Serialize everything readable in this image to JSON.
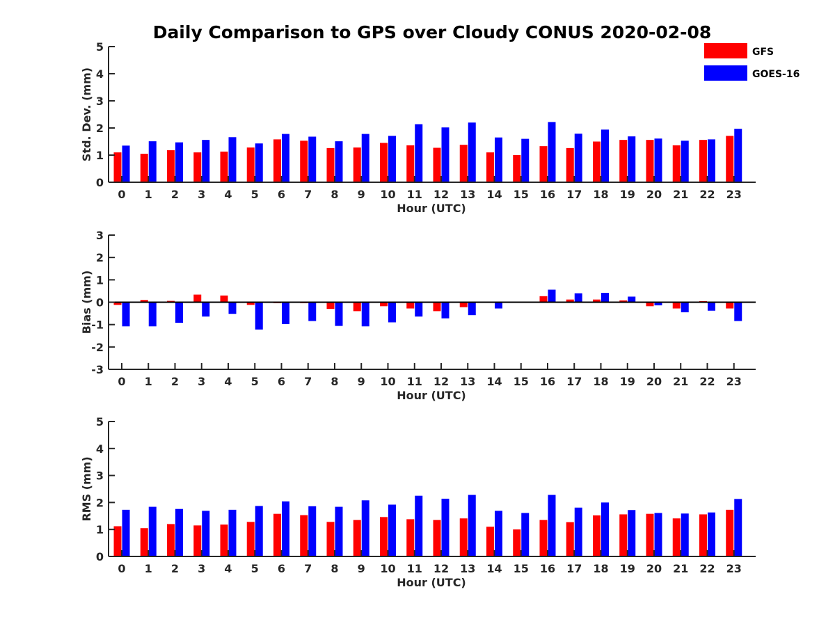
{
  "title": "Daily Comparison to GPS over Cloudy CONUS 2020-02-08",
  "legend": [
    {
      "name": "GFS",
      "color": "#ff0000"
    },
    {
      "name": "GOES-16",
      "color": "#0000ff"
    }
  ],
  "legend_position": "top-right",
  "chart_data": [
    {
      "type": "bar",
      "title": "Daily Comparison to GPS over Cloudy CONUS 2020-02-08",
      "xlabel": "Hour (UTC)",
      "ylabel": "Std. Dev. (mm)",
      "ylim": [
        0,
        5
      ],
      "yticks": [
        0,
        1,
        2,
        3,
        4,
        5
      ],
      "categories": [
        "0",
        "1",
        "2",
        "3",
        "4",
        "5",
        "6",
        "7",
        "8",
        "9",
        "10",
        "11",
        "12",
        "13",
        "14",
        "15",
        "16",
        "17",
        "18",
        "19",
        "20",
        "21",
        "22",
        "23"
      ],
      "series": [
        {
          "name": "GFS",
          "color": "#ff0000",
          "values": [
            1.1,
            1.05,
            1.18,
            1.1,
            1.13,
            1.28,
            1.58,
            1.53,
            1.26,
            1.28,
            1.45,
            1.36,
            1.27,
            1.38,
            1.1,
            1.0,
            1.33,
            1.26,
            1.5,
            1.56,
            1.56,
            1.36,
            1.56,
            1.71
          ]
        },
        {
          "name": "GOES-16",
          "color": "#0000ff",
          "values": [
            1.35,
            1.51,
            1.47,
            1.56,
            1.66,
            1.43,
            1.78,
            1.68,
            1.51,
            1.78,
            1.71,
            2.14,
            2.02,
            2.2,
            1.65,
            1.6,
            2.22,
            1.79,
            1.94,
            1.69,
            1.61,
            1.53,
            1.58,
            1.97
          ]
        }
      ]
    },
    {
      "type": "bar",
      "xlabel": "Hour (UTC)",
      "ylabel": "Bias (mm)",
      "ylim": [
        -3,
        3
      ],
      "yticks": [
        -3,
        -2,
        -1,
        0,
        1,
        2,
        3
      ],
      "categories": [
        "0",
        "1",
        "2",
        "3",
        "4",
        "5",
        "6",
        "7",
        "8",
        "9",
        "10",
        "11",
        "12",
        "13",
        "14",
        "15",
        "16",
        "17",
        "18",
        "19",
        "20",
        "21",
        "22",
        "23"
      ],
      "series": [
        {
          "name": "GFS",
          "color": "#ff0000",
          "values": [
            -0.12,
            0.1,
            0.06,
            0.34,
            0.3,
            -0.12,
            -0.04,
            -0.04,
            -0.3,
            -0.4,
            -0.18,
            -0.28,
            -0.4,
            -0.22,
            -0.03,
            0.02,
            0.27,
            0.12,
            0.12,
            0.08,
            -0.18,
            -0.28,
            0.05,
            -0.28
          ]
        },
        {
          "name": "GOES-16",
          "color": "#0000ff",
          "values": [
            -1.08,
            -1.08,
            -0.92,
            -0.64,
            -0.52,
            -1.22,
            -0.98,
            -0.84,
            -1.06,
            -1.08,
            -0.9,
            -0.64,
            -0.72,
            -0.58,
            -0.28,
            0.0,
            0.56,
            0.4,
            0.42,
            0.25,
            -0.14,
            -0.45,
            -0.38,
            -0.84
          ]
        }
      ]
    },
    {
      "type": "bar",
      "xlabel": "Hour (UTC)",
      "ylabel": "RMS (mm)",
      "ylim": [
        0,
        5
      ],
      "yticks": [
        0,
        1,
        2,
        3,
        4,
        5
      ],
      "categories": [
        "0",
        "1",
        "2",
        "3",
        "4",
        "5",
        "6",
        "7",
        "8",
        "9",
        "10",
        "11",
        "12",
        "13",
        "14",
        "15",
        "16",
        "17",
        "18",
        "19",
        "20",
        "21",
        "22",
        "23"
      ],
      "series": [
        {
          "name": "GFS",
          "color": "#ff0000",
          "values": [
            1.12,
            1.05,
            1.2,
            1.15,
            1.18,
            1.28,
            1.58,
            1.53,
            1.28,
            1.35,
            1.46,
            1.38,
            1.35,
            1.41,
            1.1,
            1.0,
            1.35,
            1.27,
            1.52,
            1.56,
            1.58,
            1.41,
            1.56,
            1.73
          ]
        },
        {
          "name": "GOES-16",
          "color": "#0000ff",
          "values": [
            1.73,
            1.84,
            1.76,
            1.69,
            1.73,
            1.87,
            2.04,
            1.86,
            1.84,
            2.08,
            1.92,
            2.25,
            2.14,
            2.28,
            1.69,
            1.61,
            2.28,
            1.81,
            2.0,
            1.72,
            1.61,
            1.59,
            1.63,
            2.13
          ]
        }
      ]
    }
  ]
}
